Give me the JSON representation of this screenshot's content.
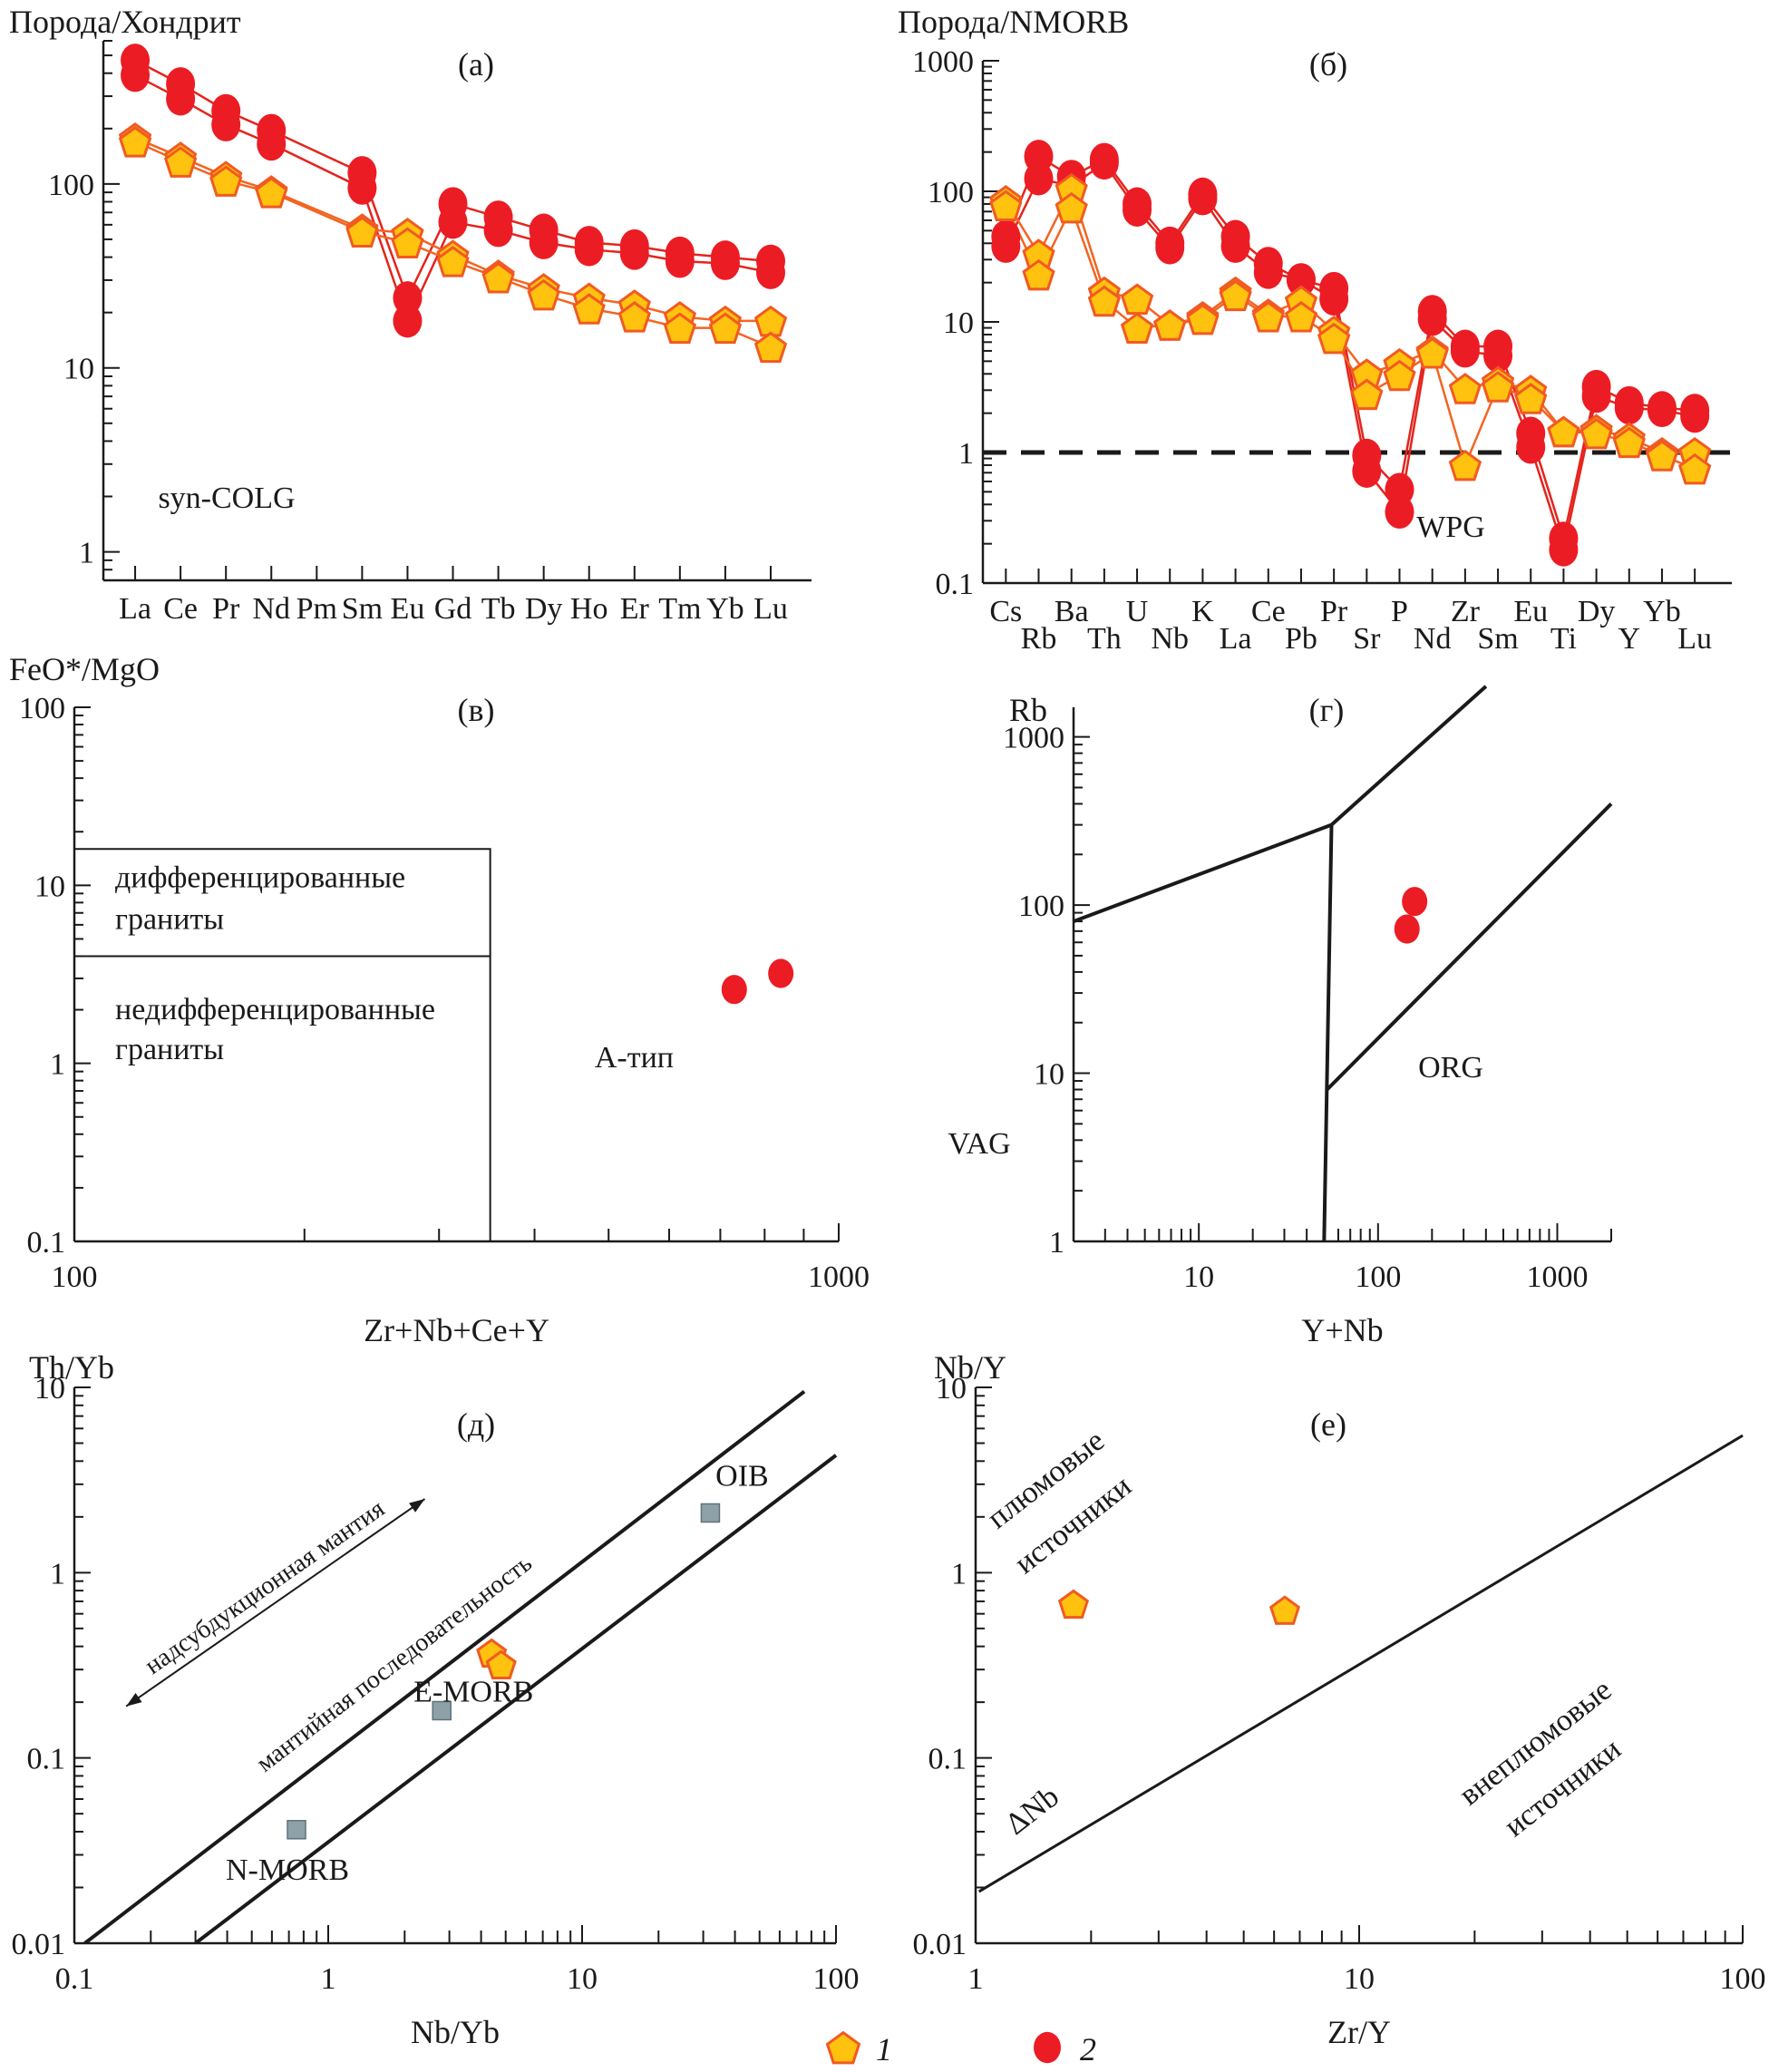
{
  "colors": {
    "circle_fill": "#ec1c24",
    "circle_line": "#e4241c",
    "pent_fill": "#ffc20e",
    "pent_stroke": "#f15a22",
    "pent_line": "#f26522",
    "axis": "#1a1a1a",
    "ref_square": "#8fa1a8"
  },
  "legend": [
    {
      "symbol": "pentagon",
      "label": "1"
    },
    {
      "symbol": "circle",
      "label": "2"
    }
  ],
  "chart_data": [
    {
      "id": "a",
      "panel_label": "(а)",
      "type": "line",
      "ylabel": "Порода/Хондрит",
      "xlabel": "",
      "yscale": "log",
      "ylim": [
        0.7,
        600
      ],
      "yticks": [
        1,
        10,
        100
      ],
      "ytick_labels": [
        "1",
        "10",
        "100"
      ],
      "categories": [
        "La",
        "Ce",
        "Pr",
        "Nd",
        "Pm",
        "Sm",
        "Eu",
        "Gd",
        "Tb",
        "Dy",
        "Ho",
        "Er",
        "Tm",
        "Yb",
        "Lu"
      ],
      "series": [
        {
          "name": "2",
          "symbol": "circle",
          "values": [
            470,
            350,
            250,
            195,
            null,
            115,
            24,
            78,
            66,
            56,
            48,
            46,
            42,
            40,
            38
          ]
        },
        {
          "name": "2",
          "symbol": "circle",
          "values": [
            390,
            290,
            210,
            165,
            null,
            95,
            18,
            62,
            56,
            48,
            44,
            42,
            38,
            37,
            33
          ]
        },
        {
          "name": "1",
          "symbol": "pentagon",
          "values": [
            178,
            140,
            110,
            92,
            null,
            57,
            54,
            41,
            32,
            27,
            24,
            22,
            19,
            18,
            18
          ]
        },
        {
          "name": "1",
          "symbol": "pentagon",
          "values": [
            170,
            132,
            104,
            90,
            null,
            55,
            48,
            38,
            31,
            25,
            21,
            19,
            16.5,
            16.5,
            13
          ]
        }
      ]
    },
    {
      "id": "b",
      "panel_label": "(б)",
      "type": "line",
      "ylabel": "Порода/NMORB",
      "xlabel": "",
      "yscale": "log",
      "ylim": [
        0.1,
        1000
      ],
      "yticks": [
        0.1,
        1,
        10,
        100,
        1000
      ],
      "ytick_labels": [
        "0.1",
        "1",
        "10",
        "100",
        "1000"
      ],
      "reference_line": {
        "y": 1,
        "style": "dashed"
      },
      "categories": [
        "Cs",
        "Rb",
        "Ba",
        "Th",
        "U",
        "Nb",
        "K",
        "La",
        "Ce",
        "Pb",
        "Pr",
        "Sr",
        "P",
        "Nd",
        "Zr",
        "Sm",
        "Eu",
        "Ti",
        "Dy",
        "Y",
        "Yb",
        "Lu"
      ],
      "series": [
        {
          "name": "2",
          "symbol": "circle",
          "values": [
            45,
            185,
            130,
            175,
            80,
            40,
            95,
            45,
            28,
            21,
            18,
            0.95,
            0.52,
            12,
            6.5,
            6.5,
            1.4,
            0.22,
            3.2,
            2.4,
            2.2,
            2.1
          ]
        },
        {
          "name": "2",
          "symbol": "circle",
          "values": [
            38,
            125,
            110,
            165,
            72,
            37,
            88,
            38,
            24,
            21,
            15,
            0.72,
            0.35,
            10.5,
            6,
            5.5,
            1.1,
            0.18,
            2.7,
            2.2,
            2.1,
            1.9
          ]
        },
        {
          "name": "1",
          "symbol": "pentagon",
          "values": [
            85,
            33,
            105,
            17,
            15,
            9.5,
            11,
            17,
            11.5,
            14.5,
            8.5,
            4,
            4.8,
            6,
            3.1,
            3.5,
            3,
            1.45,
            1.5,
            1.3,
            1.0,
            1.0
          ]
        },
        {
          "name": "1",
          "symbol": "pentagon",
          "values": [
            78,
            23,
            75,
            14.5,
            9,
            9.5,
            10.5,
            16,
            11,
            11,
            7.5,
            2.8,
            3.9,
            5.8,
            0.8,
            3.2,
            2.6,
            1.45,
            1.4,
            1.2,
            0.95,
            0.75
          ]
        }
      ]
    },
    {
      "id": "c",
      "panel_label": "(в)",
      "type": "scatter",
      "ylabel": "FeO*/MgO",
      "xlabel": "Zr+Nb+Ce+Y",
      "xscale": "log",
      "yscale": "log",
      "xlim": [
        100,
        1000
      ],
      "ylim": [
        0.1,
        100
      ],
      "xticks": [
        100,
        1000
      ],
      "xtick_labels": [
        "100",
        "1000"
      ],
      "yticks": [
        0.1,
        1,
        10,
        100
      ],
      "ytick_labels": [
        "0.1",
        "1",
        "10",
        "100"
      ],
      "regions": [
        {
          "label_lines": [
            "дифференцированные",
            "граниты"
          ]
        },
        {
          "label_lines": [
            "недифференцированные",
            "граниты"
          ]
        },
        {
          "label_lines": [
            "А-тип"
          ]
        }
      ],
      "boundaries": {
        "x_max": 350,
        "y_top": 16,
        "y_mid": 4
      },
      "series": [
        {
          "name": "2",
          "symbol": "circle",
          "points": [
            [
              730,
              2.6
            ],
            [
              840,
              3.2
            ]
          ]
        }
      ]
    },
    {
      "id": "d",
      "panel_label": "(г)",
      "type": "scatter",
      "ylabel": "Rb",
      "xlabel": "Y+Nb",
      "xscale": "log",
      "yscale": "log",
      "xlim": [
        2,
        2000
      ],
      "ylim": [
        1,
        1500
      ],
      "xticks": [
        10,
        100,
        1000
      ],
      "xtick_labels": [
        "10",
        "100",
        "1000"
      ],
      "yticks": [
        1,
        10,
        100,
        1000
      ],
      "ytick_labels": [
        "1",
        "10",
        "100",
        "1000"
      ],
      "regions": [
        {
          "label": "syn-COLG"
        },
        {
          "label": "WPG"
        },
        {
          "label": "VAG"
        },
        {
          "label": "ORG"
        }
      ],
      "boundary_lines": [
        [
          [
            2,
            80
          ],
          [
            55,
            300
          ]
        ],
        [
          [
            55,
            300
          ],
          [
            400,
            2000
          ]
        ],
        [
          [
            55,
            300
          ],
          [
            50,
            1
          ]
        ],
        [
          [
            52,
            8
          ],
          [
            2000,
            400
          ]
        ]
      ],
      "series": [
        {
          "name": "2",
          "symbol": "circle",
          "points": [
            [
              160,
              105
            ],
            [
              145,
              72
            ]
          ]
        }
      ]
    },
    {
      "id": "e",
      "panel_label": "(д)",
      "type": "scatter",
      "ylabel": "Th/Yb",
      "xlabel": "Nb/Yb",
      "xscale": "log",
      "yscale": "log",
      "xlim": [
        0.1,
        100
      ],
      "ylim": [
        0.01,
        10
      ],
      "xticks": [
        0.1,
        1,
        10,
        100
      ],
      "xtick_labels": [
        "0.1",
        "1",
        "10",
        "100"
      ],
      "yticks": [
        0.01,
        0.1,
        1,
        10
      ],
      "ytick_labels": [
        "0.01",
        "0.1",
        "1",
        "10"
      ],
      "annotations": [
        {
          "text": "надсубдукционная мантия",
          "type": "double-arrow",
          "from": [
            0.16,
            0.19
          ],
          "to": [
            2.4,
            2.5
          ]
        },
        {
          "text": "мантийная последовательность"
        }
      ],
      "boundary_lines": [
        [
          [
            0.11,
            0.01
          ],
          [
            75,
            9.5
          ]
        ],
        [
          [
            0.3,
            0.01
          ],
          [
            100,
            4.3
          ]
        ]
      ],
      "reference_points": [
        {
          "label": "N-MORB",
          "x": 0.75,
          "y": 0.041
        },
        {
          "label": "E-MORB",
          "x": 2.8,
          "y": 0.18
        },
        {
          "label": "OIB",
          "x": 32,
          "y": 2.1
        }
      ],
      "series": [
        {
          "name": "1",
          "symbol": "pentagon",
          "points": [
            [
              4.4,
              0.37
            ],
            [
              4.8,
              0.32
            ]
          ]
        }
      ]
    },
    {
      "id": "f",
      "panel_label": "(е)",
      "type": "scatter",
      "ylabel": "Nb/Y",
      "xlabel": "Zr/Y",
      "xscale": "log",
      "yscale": "log",
      "xlim": [
        1,
        100
      ],
      "ylim": [
        0.01,
        10
      ],
      "xticks": [
        1,
        10,
        100
      ],
      "xtick_labels": [
        "1",
        "10",
        "100"
      ],
      "yticks": [
        0.01,
        0.1,
        1,
        10
      ],
      "ytick_labels": [
        "0.01",
        "0.1",
        "1",
        "10"
      ],
      "regions": [
        {
          "label_lines": [
            "плюмовые",
            "источники"
          ]
        },
        {
          "label_lines": [
            "внеплюмовые",
            "источники"
          ]
        }
      ],
      "line_label": "ΔNb",
      "boundary_lines": [
        [
          [
            1.02,
            0.019
          ],
          [
            100,
            5.5
          ]
        ]
      ],
      "series": [
        {
          "name": "1",
          "symbol": "pentagon",
          "points": [
            [
              1.8,
              0.68
            ],
            [
              6.4,
              0.63
            ]
          ]
        }
      ]
    }
  ]
}
